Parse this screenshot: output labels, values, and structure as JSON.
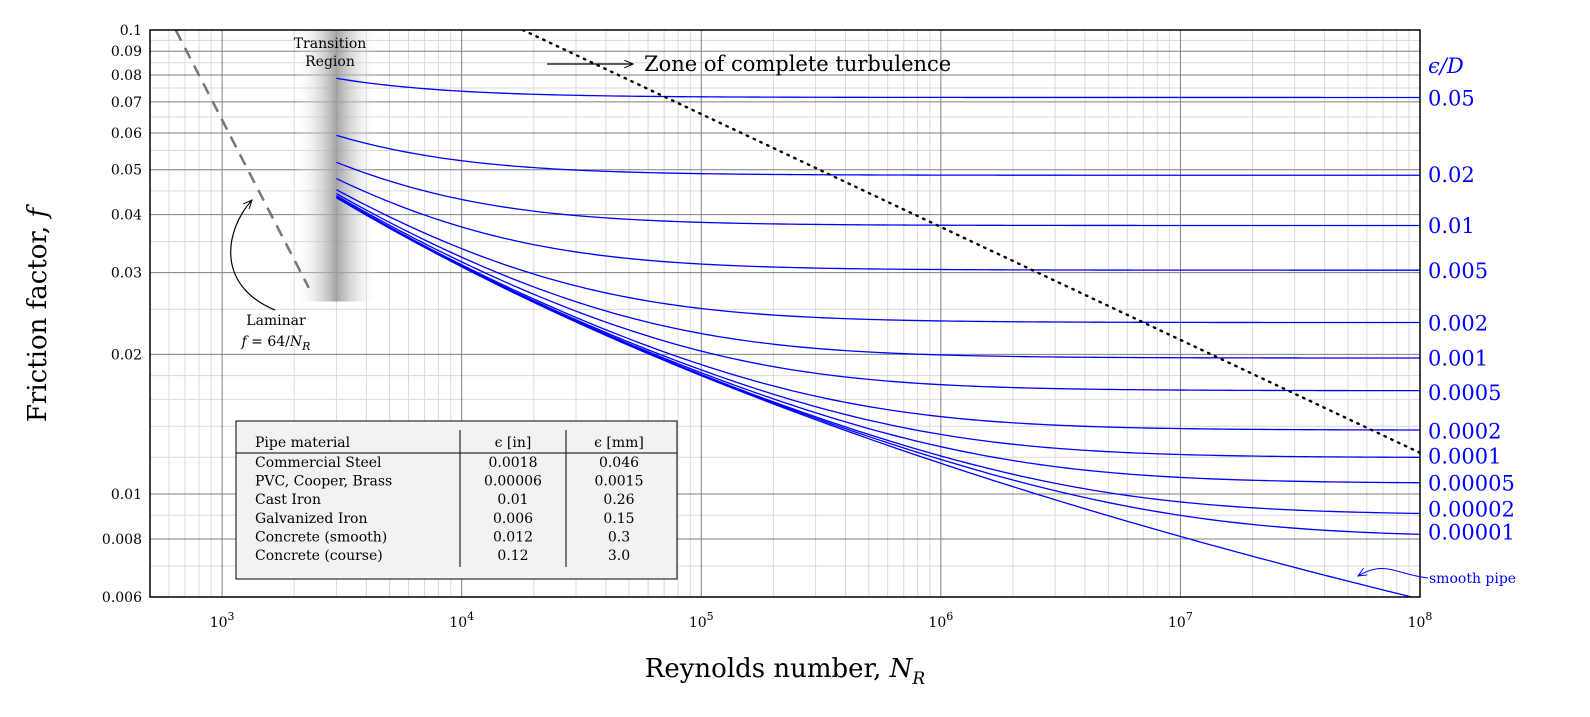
{
  "chart_data": {
    "type": "line",
    "title": "",
    "xlabel": "Reynolds number, ",
    "xlabel_var": "N",
    "xlabel_sub": "R",
    "ylabel": "Friction factor, ",
    "ylabel_var": "f",
    "x_scale": "log",
    "y_scale": "log",
    "xlim": [
      500,
      100000000
    ],
    "ylim": [
      0.006,
      0.1
    ],
    "grid": true,
    "x_ticks": [
      {
        "value": 1000,
        "base": "10",
        "exp": "3"
      },
      {
        "value": 10000,
        "base": "10",
        "exp": "4"
      },
      {
        "value": 100000,
        "base": "10",
        "exp": "5"
      },
      {
        "value": 1000000,
        "base": "10",
        "exp": "6"
      },
      {
        "value": 10000000,
        "base": "10",
        "exp": "7"
      },
      {
        "value": 100000000,
        "base": "10",
        "exp": "8"
      }
    ],
    "y_ticks": [
      {
        "value": 0.1,
        "label": "0.1"
      },
      {
        "value": 0.09,
        "label": "0.09"
      },
      {
        "value": 0.08,
        "label": "0.08"
      },
      {
        "value": 0.07,
        "label": "0.07"
      },
      {
        "value": 0.06,
        "label": "0.06"
      },
      {
        "value": 0.05,
        "label": "0.05"
      },
      {
        "value": 0.04,
        "label": "0.04"
      },
      {
        "value": 0.03,
        "label": "0.03"
      },
      {
        "value": 0.02,
        "label": "0.02"
      },
      {
        "value": 0.01,
        "label": "0.01"
      },
      {
        "value": 0.008,
        "label": "0.008"
      },
      {
        "value": 0.006,
        "label": "0.006"
      }
    ],
    "relative_roughness_header": "ϵ/D",
    "series": [
      {
        "name": "0.05",
        "roughness": 0.05,
        "label_y": 0.0715
      },
      {
        "name": "0.02",
        "roughness": 0.02,
        "label_y": 0.0489
      },
      {
        "name": "0.01",
        "roughness": 0.01,
        "label_y": 0.038
      },
      {
        "name": "0.005",
        "roughness": 0.005,
        "label_y": 0.0304
      },
      {
        "name": "0.002",
        "roughness": 0.002,
        "label_y": 0.0234
      },
      {
        "name": "0.001",
        "roughness": 0.001,
        "label_y": 0.0197
      },
      {
        "name": "0.0005",
        "roughness": 0.0005,
        "label_y": 0.0166
      },
      {
        "name": "0.0002",
        "roughness": 0.0002,
        "label_y": 0.0137
      },
      {
        "name": "0.0001",
        "roughness": 0.0001,
        "label_y": 0.0121
      },
      {
        "name": "0.00005",
        "roughness": 5e-05,
        "label_y": 0.0106
      },
      {
        "name": "0.00002",
        "roughness": 2e-05,
        "label_y": 0.0093
      },
      {
        "name": "0.00001",
        "roughness": 1e-05,
        "label_y": 0.0083
      },
      {
        "name": "smooth pipe",
        "roughness": 0,
        "label_y": null
      }
    ],
    "laminar": {
      "label": "Laminar",
      "formula_lhs": "f",
      "formula_rhs": " = 64/",
      "formula_var": "N",
      "formula_sub": "R",
      "x_range": [
        640,
        2300
      ]
    },
    "transition_region": {
      "label_line1": "Transition",
      "label_line2": "Region",
      "x_range": [
        2000,
        4500
      ]
    },
    "complete_turbulence": {
      "label": "Zone of complete turbulence"
    },
    "curves_start_x": 3000,
    "legend_table": {
      "headers": [
        "Pipe material",
        "ϵ [in]",
        "ϵ [mm]"
      ],
      "rows": [
        [
          "Commercial Steel",
          "0.0018",
          "0.046"
        ],
        [
          "PVC, Cooper, Brass",
          "0.00006",
          "0.0015"
        ],
        [
          "Cast Iron",
          "0.01",
          "0.26"
        ],
        [
          "Galvanized Iron",
          "0.006",
          "0.15"
        ],
        [
          "Concrete (smooth)",
          "0.012",
          "0.3"
        ],
        [
          "Concrete (course)",
          "0.12",
          "3.0"
        ]
      ]
    },
    "colors": {
      "curves": "#0000ff",
      "laminar": "#777777",
      "turbulence": "#000000",
      "table_bg": "#f2f2f2",
      "grid_major": "#7f7f7f",
      "grid_minor": "#d9d9d9"
    }
  }
}
